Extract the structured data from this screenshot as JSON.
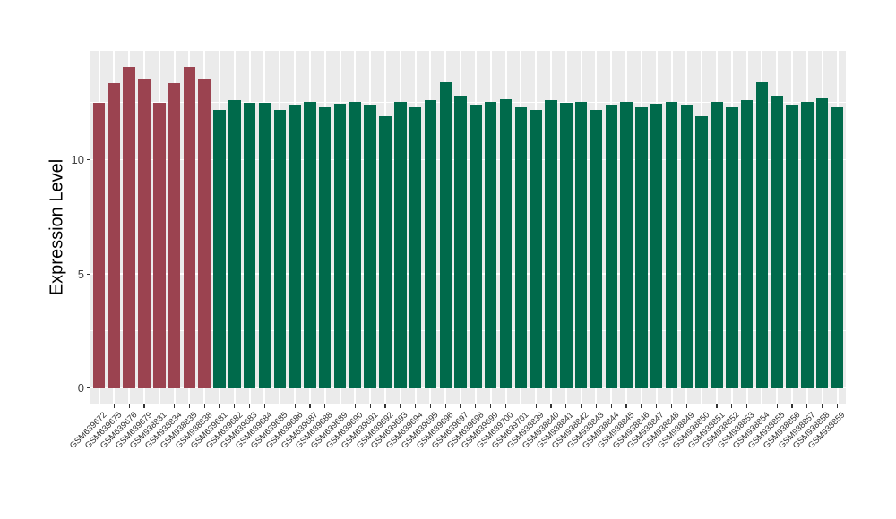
{
  "figure": {
    "background": "#FFFFFF",
    "panel_background": "#EBEBEB",
    "gridline_color": "#FFFFFF",
    "axis_text_color": "#404040",
    "axis_title_color": "#000000",
    "tick_mark_color": "#333333"
  },
  "chart_data": {
    "type": "bar",
    "title": "",
    "xlabel": "",
    "ylabel": "Expression Level",
    "ylim": [
      0,
      14.8
    ],
    "yticks": [
      0,
      5,
      10
    ],
    "yticks_minor": [
      2.5,
      7.5,
      12.5
    ],
    "grid": "on",
    "legend": "none",
    "bar_colors": {
      "highlighted": "#9B4350",
      "default": "#006A4B"
    },
    "highlighted_count": 8,
    "categories": [
      "GSM639672",
      "GSM639675",
      "GSM639676",
      "GSM639679",
      "GSM938831",
      "GSM938834",
      "GSM938835",
      "GSM938838",
      "GSM639681",
      "GSM639682",
      "GSM639683",
      "GSM639684",
      "GSM639685",
      "GSM639686",
      "GSM639687",
      "GSM639688",
      "GSM639689",
      "GSM639690",
      "GSM639691",
      "GSM639692",
      "GSM639693",
      "GSM639694",
      "GSM639695",
      "GSM639696",
      "GSM639697",
      "GSM639698",
      "GSM639699",
      "GSM639700",
      "GSM639701",
      "GSM938839",
      "GSM938840",
      "GSM938841",
      "GSM938842",
      "GSM938843",
      "GSM938844",
      "GSM938845",
      "GSM938846",
      "GSM938847",
      "GSM938848",
      "GSM938849",
      "GSM938850",
      "GSM938851",
      "GSM938852",
      "GSM938853",
      "GSM938854",
      "GSM938855",
      "GSM938856",
      "GSM938857",
      "GSM938858",
      "GSM938859"
    ],
    "values": [
      12.5,
      13.35,
      14.05,
      13.55,
      12.5,
      13.35,
      14.05,
      13.55,
      12.2,
      12.6,
      12.5,
      12.5,
      12.2,
      12.4,
      12.55,
      12.3,
      12.45,
      12.55,
      12.4,
      11.9,
      12.55,
      12.3,
      12.6,
      13.4,
      12.8,
      12.4,
      12.55,
      12.65,
      12.3,
      12.2,
      12.6,
      12.5,
      12.55,
      12.2,
      12.4,
      12.55,
      12.3,
      12.45,
      12.55,
      12.4,
      11.9,
      12.55,
      12.3,
      12.6,
      13.4,
      12.8,
      12.4,
      12.55,
      12.7,
      12.3
    ],
    "groups": [
      "highlighted",
      "highlighted",
      "highlighted",
      "highlighted",
      "highlighted",
      "highlighted",
      "highlighted",
      "highlighted",
      "default",
      "default",
      "default",
      "default",
      "default",
      "default",
      "default",
      "default",
      "default",
      "default",
      "default",
      "default",
      "default",
      "default",
      "default",
      "default",
      "default",
      "default",
      "default",
      "default",
      "default",
      "default",
      "default",
      "default",
      "default",
      "default",
      "default",
      "default",
      "default",
      "default",
      "default",
      "default",
      "default",
      "default",
      "default",
      "default",
      "default",
      "default",
      "default",
      "default",
      "default",
      "default"
    ]
  }
}
